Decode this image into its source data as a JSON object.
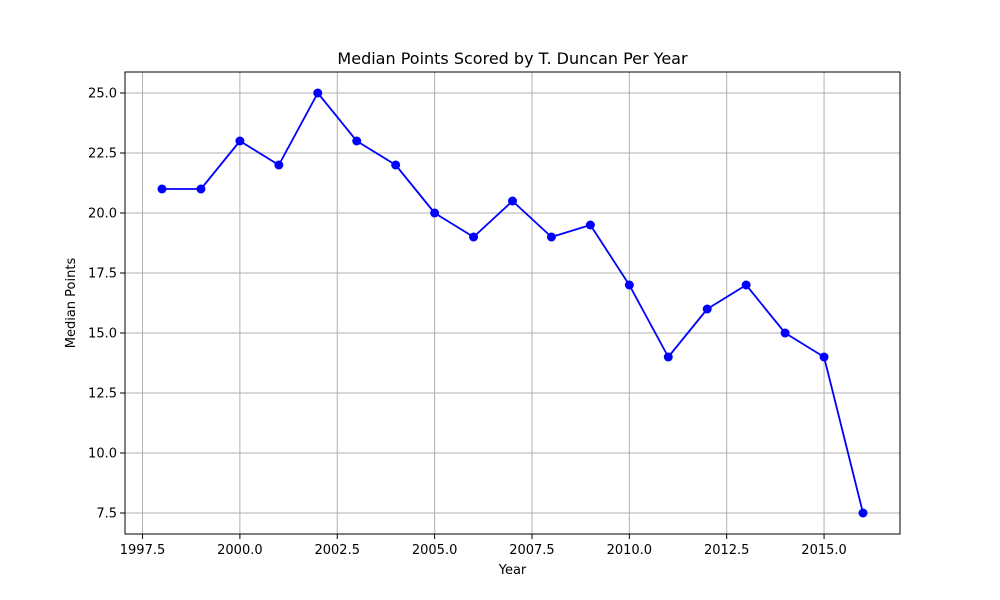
{
  "chart_data": {
    "type": "line",
    "title": "Median Points Scored by T. Duncan Per Year",
    "xlabel": "Year",
    "ylabel": "Median Points",
    "xlim": [
      1997.05,
      2016.95
    ],
    "ylim": [
      6.625,
      25.875
    ],
    "x_ticks": [
      1997.5,
      2000.0,
      2002.5,
      2005.0,
      2007.5,
      2010.0,
      2012.5,
      2015.0
    ],
    "x_tick_labels": [
      "1997.5",
      "2000.0",
      "2002.5",
      "2005.0",
      "2007.5",
      "2010.0",
      "2012.5",
      "2015.0"
    ],
    "y_ticks": [
      7.5,
      10.0,
      12.5,
      15.0,
      17.5,
      20.0,
      22.5,
      25.0
    ],
    "y_tick_labels": [
      "7.5",
      "10.0",
      "12.5",
      "15.0",
      "17.5",
      "20.0",
      "22.5",
      "25.0"
    ],
    "grid": true,
    "x": [
      1998,
      1999,
      2000,
      2001,
      2002,
      2003,
      2004,
      2005,
      2006,
      2007,
      2008,
      2009,
      2010,
      2011,
      2012,
      2013,
      2014,
      2015,
      2016
    ],
    "series": [
      {
        "color": "#0000ff",
        "marker": "circle",
        "values": [
          21,
          21,
          23,
          22,
          25,
          23,
          22,
          20,
          19,
          20.5,
          19,
          19.5,
          17,
          14,
          16,
          17,
          15,
          14,
          7.5
        ]
      }
    ]
  }
}
